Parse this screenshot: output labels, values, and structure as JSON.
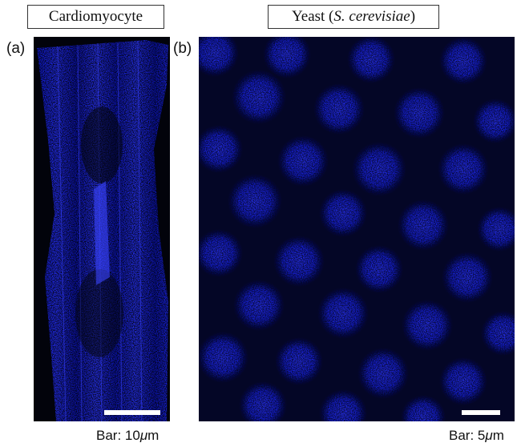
{
  "figure": {
    "panel_a": {
      "label": "(a)",
      "title": "Cardiomyocyte",
      "scalebar_caption_prefix": "Bar: 10",
      "scalebar_caption_unit_greek": "μ",
      "scalebar_caption_unit": "m"
    },
    "panel_b": {
      "label": "(b)",
      "title_main": "Yeast (",
      "title_italic": "S. cerevisiae",
      "title_close": ")",
      "scalebar_caption_prefix": "Bar: 5",
      "scalebar_caption_unit_greek": "μ",
      "scalebar_caption_unit": "m"
    }
  },
  "colors": {
    "background": "#02030b",
    "signal": "#1a24ff",
    "signal_dim": "#0a0f8a"
  }
}
